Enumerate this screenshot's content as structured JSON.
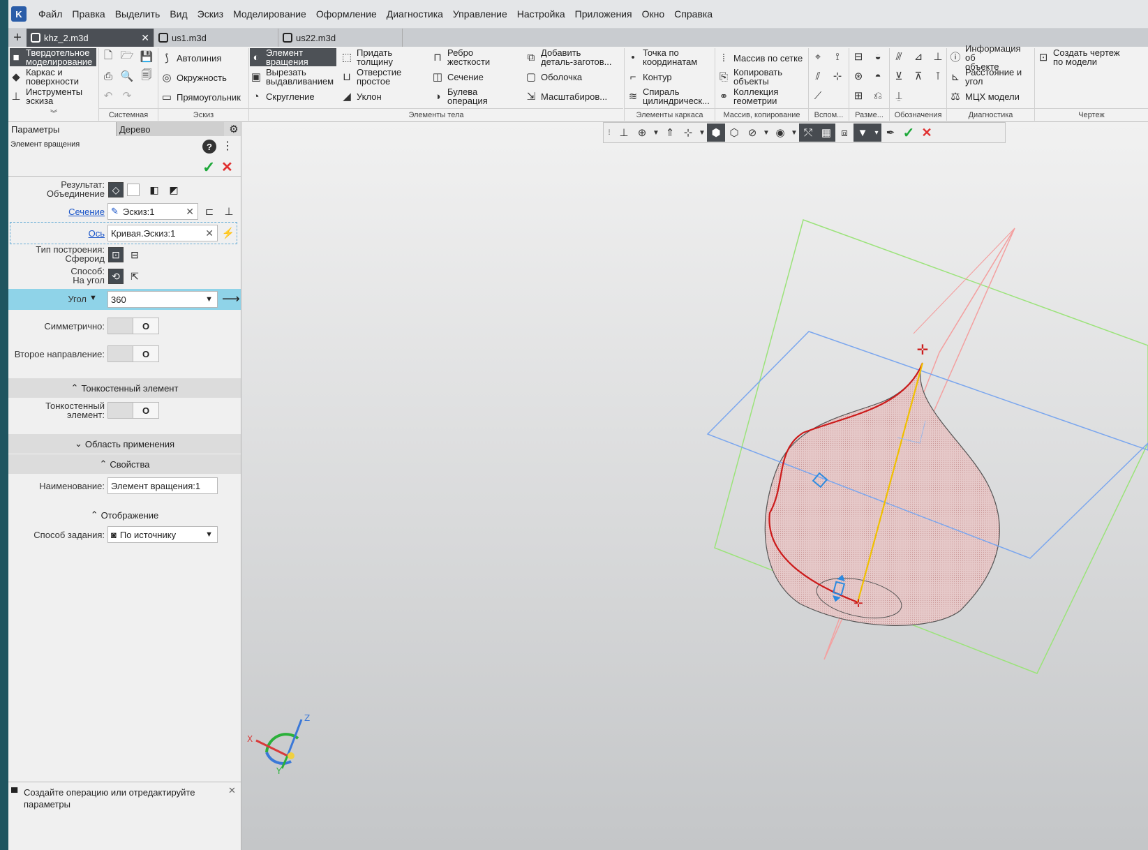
{
  "app": {
    "logo": "K"
  },
  "menu": [
    "Файл",
    "Правка",
    "Выделить",
    "Вид",
    "Эскиз",
    "Моделирование",
    "Оформление",
    "Диагностика",
    "Управление",
    "Настройка",
    "Приложения",
    "Окно",
    "Справка"
  ],
  "tabs": [
    {
      "label": "khz_2.m3d",
      "active": true
    },
    {
      "label": "us1.m3d",
      "active": false
    },
    {
      "label": "us22.m3d",
      "active": false
    }
  ],
  "ribbon": {
    "modes": [
      "Твердотельное\nмоделирование",
      "Каркас и\nповерхности",
      "Инструменты\nэскиза"
    ],
    "sketch": [
      "Автолиния",
      "Окружность",
      "Прямоугольник"
    ],
    "body": [
      "Элемент\nвращения",
      "Вырезать\nвыдавливанием",
      "Скругление",
      "Придать\nтолщину",
      "Отверстие\nпростое",
      "Уклон",
      "Ребро\nжесткости",
      "Сечение",
      "Булева\nоперация",
      "Добавить\nдеталь-заготов...",
      "Оболочка",
      "Масштабиров..."
    ],
    "frame": [
      "Точка по\nкоординатам",
      "Контур",
      "Спираль\nцилиндрическ..."
    ],
    "array": [
      "Массив по сетке",
      "Копировать\nобъекты",
      "Коллекция\nгеометрии"
    ],
    "diag": [
      "Информация об\nобъекте",
      "Расстояние и\nугол",
      "МЦХ модели"
    ],
    "drawing": [
      "Создать чертеж\nпо модели"
    ],
    "groups": [
      "Системная",
      "Эскиз",
      "Элементы тела",
      "Элементы каркаса",
      "Массив, копирование",
      "Вспом...",
      "Разме...",
      "Обозначения",
      "Диагностика",
      "Чертеж"
    ]
  },
  "panel": {
    "tabs": [
      "Параметры",
      "Дерево"
    ],
    "title": "Элемент вращения",
    "result_label": "Результат:",
    "result_value": "Объединение",
    "section_label": "Сечение",
    "section_value": "Эскиз:1",
    "axis_label": "Ось",
    "axis_value": "Кривая.Эскиз:1",
    "build_type_label": "Тип построения:",
    "build_type_value": "Сфероид",
    "method_label": "Способ:",
    "method_value": "На угол",
    "angle_label": "Угол",
    "angle_value": "360",
    "symmetric_label": "Симметрично:",
    "second_dir_label": "Второе направление:",
    "toggle_text": "O",
    "thin_section": "Тонкостенный элемент",
    "thin_label": "Тонкостенный\nэлемент:",
    "scope_section": "Область применения",
    "props_section": "Свойства",
    "name_label": "Наименование:",
    "name_value": "Элемент вращения:1",
    "display_section": "Отображение",
    "display_method_label": "Способ задания:",
    "display_method_value": "По источнику",
    "status": "Создайте операцию или отредактируйте\nпараметры"
  },
  "axes": {
    "x": "X",
    "y": "Y",
    "z": "Z"
  },
  "colors": {
    "accent_row": "#8fd3e8",
    "ok": "#1ea83a",
    "cancel": "#e03030",
    "dark_button": "#474b50"
  }
}
